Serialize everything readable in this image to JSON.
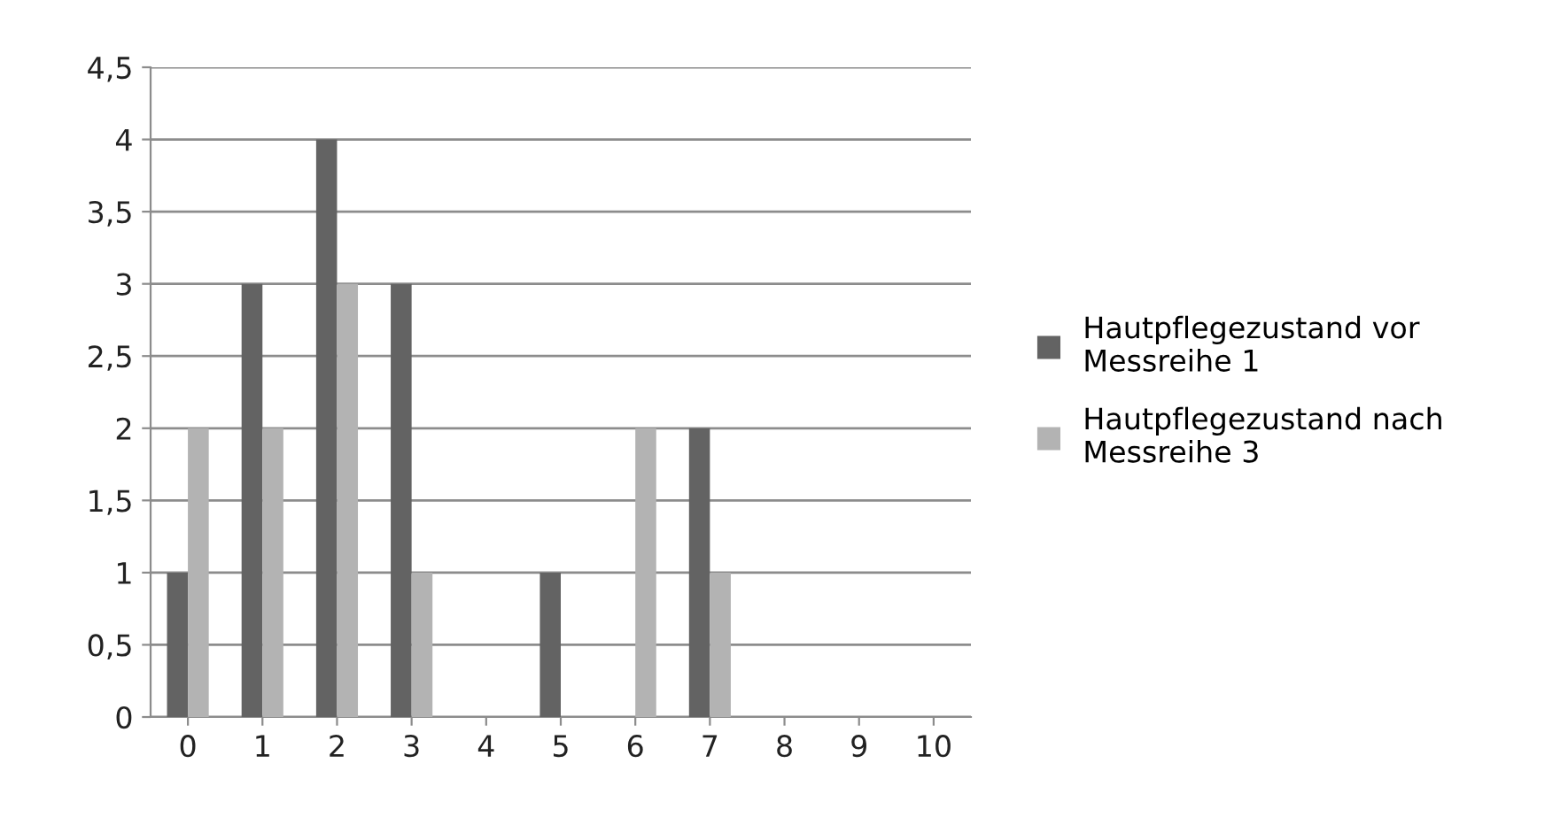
{
  "chart_data": {
    "type": "bar",
    "categories": [
      "0",
      "1",
      "2",
      "3",
      "4",
      "5",
      "6",
      "7",
      "8",
      "9",
      "10"
    ],
    "series": [
      {
        "name": "Hautpflegezustand vor\nMessreihe 1",
        "color": "#636363",
        "values": [
          1,
          3,
          4,
          3,
          0,
          1,
          0,
          2,
          0,
          0,
          0
        ]
      },
      {
        "name": "Hautpflegezustand nach\nMessreihe 3",
        "color": "#b3b3b3",
        "values": [
          2,
          2,
          3,
          1,
          0,
          0,
          2,
          1,
          0,
          0,
          0
        ]
      }
    ],
    "ylim": [
      0,
      4.5
    ],
    "yticks": [
      0,
      {
        "value": 0.5,
        "label": "0,5"
      },
      1,
      {
        "value": 1.5,
        "label": "1,5"
      },
      2,
      {
        "value": 2.5,
        "label": "2,5"
      },
      3,
      {
        "value": 3.5,
        "label": "3,5"
      },
      4,
      {
        "value": 4.5,
        "label": "4,5"
      }
    ],
    "grid": "y",
    "legend": "right"
  }
}
